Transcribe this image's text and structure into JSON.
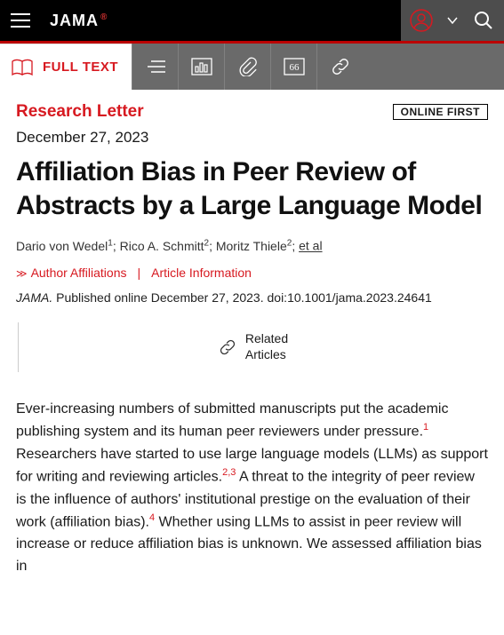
{
  "topbar": {
    "logo": "JAMA",
    "logo_superscript": "®"
  },
  "toolbar": {
    "full_text_label": "FULL TEXT"
  },
  "article": {
    "section": "Research Letter",
    "badge": "ONLINE FIRST",
    "date": "December 27, 2023",
    "title": "Affiliation Bias in Peer Review of Abstracts by a Large Language Model",
    "authors_html": "Dario von Wedel<sup>1</sup>; Rico A. Schmitt<sup>2</sup>; Moritz Thiele<sup>2</sup>; ",
    "authors_etal": "et al",
    "author_affiliations_label": "Author Affiliations",
    "article_info_label": "Article Information",
    "citation": "JAMA. Published online December 27, 2023. doi:10.1001/jama.2023.24641",
    "citation_journal": "JAMA.",
    "citation_rest": " Published online December 27, 2023. doi:10.1001/jama.2023.24641",
    "related_label": "Related\nArticles",
    "body": "Ever-increasing numbers of submitted manuscripts put the academic publishing system and its human peer reviewers under pressure.<sup>1</sup> Researchers have started to use large language models (LLMs) as support for writing and reviewing articles.<sup>2,3</sup> A threat to the integrity of peer review is the influence of authors' institutional prestige on the evaluation of their work (affiliation bias).<sup>4</sup> Whether using LLMs to assist in peer review will increase or reduce affiliation bias is unknown. We assessed affiliation bias in"
  },
  "colors": {
    "brand_red": "#d71920",
    "accent_red": "#b00",
    "dark_bg": "#000000",
    "tool_bg": "#6a6a6a",
    "topright_bg": "#4d4d4d"
  }
}
